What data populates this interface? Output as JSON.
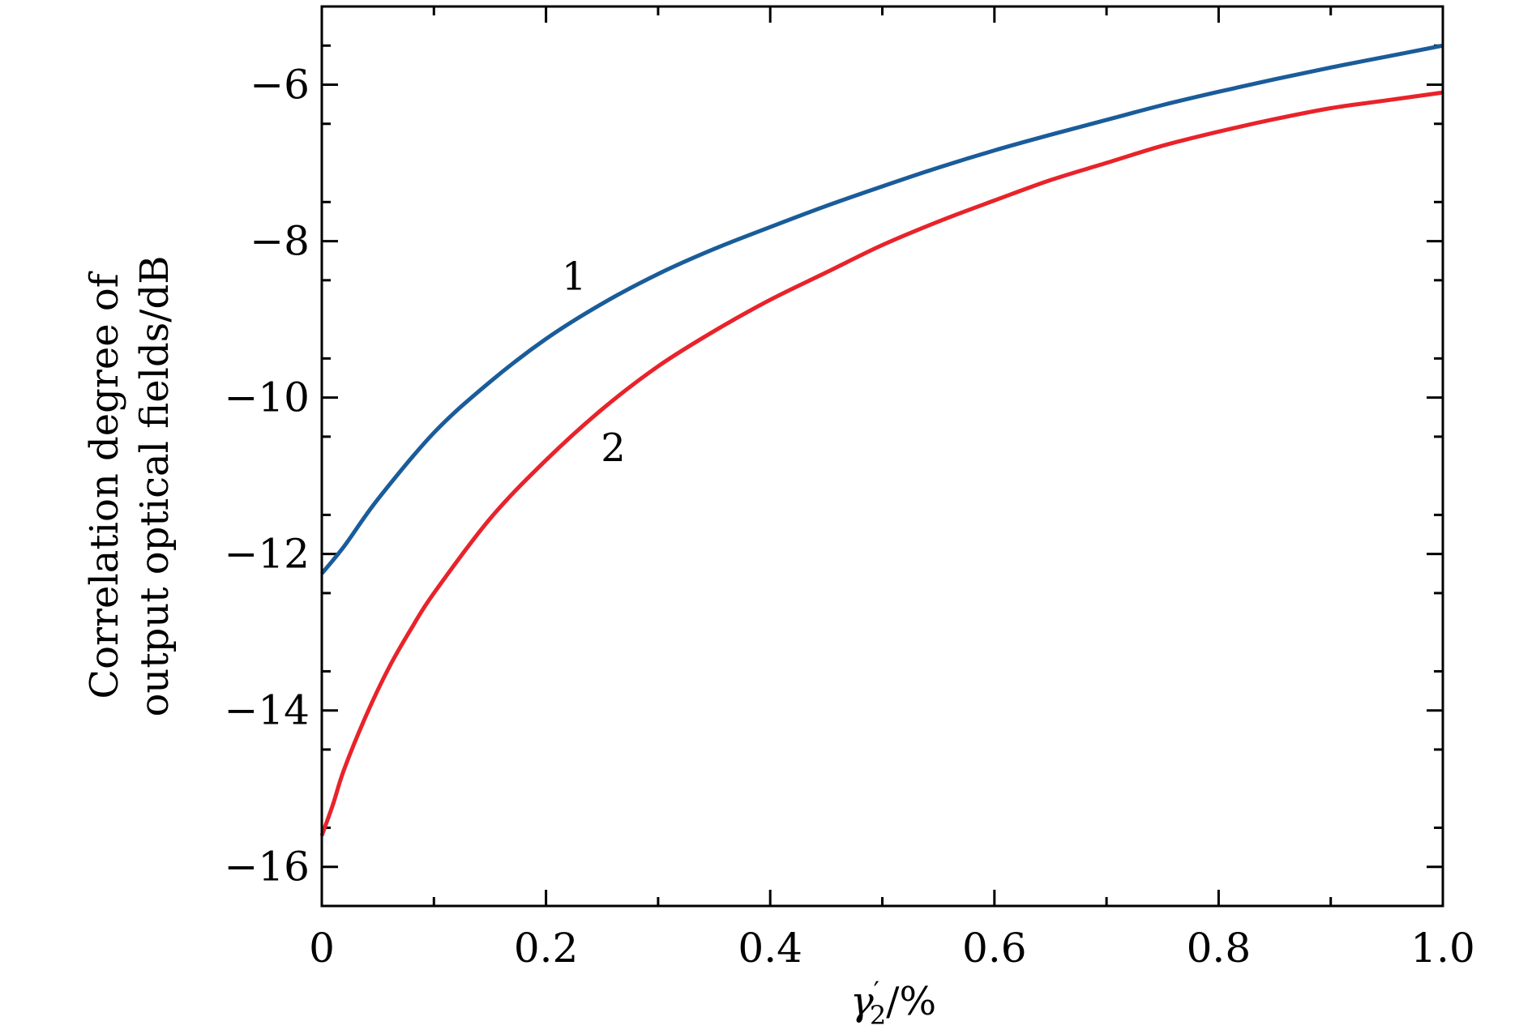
{
  "chart_data": {
    "type": "line",
    "title": "",
    "xlabel": {
      "symbol": "γ",
      "subscript": "2",
      "prime": "′",
      "unit": "/%"
    },
    "ylabel": {
      "line1": "Correlation degree of",
      "line2": "output optical fields/dB"
    },
    "xlim": [
      0,
      1
    ],
    "ylim": [
      -16.5,
      -5
    ],
    "x_ticks": [
      0,
      0.2,
      0.4,
      0.6,
      0.8,
      1.0
    ],
    "x_tick_labels": [
      "0",
      "0.2",
      "0.4",
      "0.6",
      "0.8",
      "1.0"
    ],
    "y_ticks": [
      -16,
      -14,
      -12,
      -10,
      -8,
      -6
    ],
    "y_tick_labels": [
      "−16",
      "−14",
      "−12",
      "−10",
      "−8",
      "−6"
    ],
    "grid": false,
    "legend": "none",
    "series": [
      {
        "label": "1",
        "color": "#1a5c9a",
        "x": [
          0,
          0.02,
          0.05,
          0.1,
          0.15,
          0.2,
          0.25,
          0.3,
          0.35,
          0.4,
          0.45,
          0.5,
          0.55,
          0.6,
          0.65,
          0.7,
          0.75,
          0.8,
          0.85,
          0.9,
          0.95,
          1.0
        ],
        "y": [
          -12.25,
          -11.9,
          -11.3,
          -10.45,
          -9.8,
          -9.25,
          -8.8,
          -8.42,
          -8.1,
          -7.82,
          -7.55,
          -7.3,
          -7.06,
          -6.84,
          -6.64,
          -6.45,
          -6.26,
          -6.09,
          -5.93,
          -5.78,
          -5.64,
          -5.5
        ]
      },
      {
        "label": "2",
        "color": "#e8232a",
        "x": [
          0,
          0.01,
          0.02,
          0.04,
          0.06,
          0.08,
          0.1,
          0.15,
          0.2,
          0.25,
          0.3,
          0.35,
          0.4,
          0.45,
          0.5,
          0.55,
          0.6,
          0.65,
          0.7,
          0.75,
          0.8,
          0.85,
          0.9,
          0.95,
          1.0
        ],
        "y": [
          -15.6,
          -15.2,
          -14.75,
          -14.05,
          -13.45,
          -12.95,
          -12.5,
          -11.55,
          -10.8,
          -10.15,
          -9.6,
          -9.15,
          -8.75,
          -8.4,
          -8.05,
          -7.75,
          -7.48,
          -7.22,
          -7.0,
          -6.78,
          -6.6,
          -6.44,
          -6.3,
          -6.2,
          -6.1
        ]
      }
    ],
    "annotations": [
      {
        "text": "1",
        "x": 0.225,
        "y": -8.62
      },
      {
        "text": "2",
        "x": 0.26,
        "y": -10.81
      }
    ]
  }
}
